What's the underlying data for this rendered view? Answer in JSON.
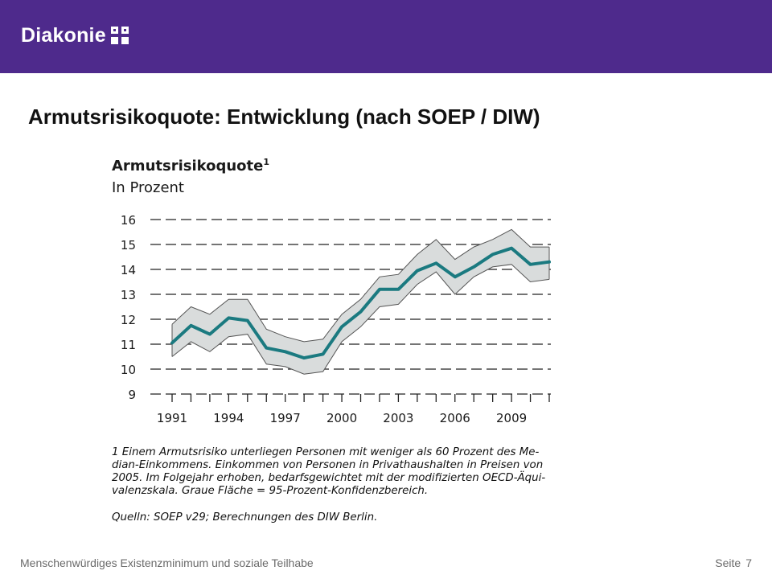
{
  "header": {
    "logo_text": "Diakonie",
    "logo_icon": "diakonie-cross-icon",
    "background_color": "#4e2a8c"
  },
  "slide": {
    "title": "Armutsrisikoquote: Entwicklung (nach SOEP / DIW)"
  },
  "chart_data": {
    "type": "line",
    "title": "Armutsrisikoquote",
    "title_footnote_marker": "1",
    "subtitle": "In Prozent",
    "xlabel": "",
    "ylabel": "",
    "ylim": [
      9,
      16
    ],
    "yticks": [
      9,
      10,
      11,
      12,
      13,
      14,
      15,
      16
    ],
    "xlim": [
      1991,
      2011
    ],
    "xticks": [
      1991,
      1994,
      1997,
      2000,
      2003,
      2006,
      2009
    ],
    "grid": "dashed-horizontal",
    "line_color": "#1b7a80",
    "band_color": "#d9dcdc",
    "band_edge_color": "#555555",
    "x": [
      1991,
      1992,
      1993,
      1994,
      1995,
      1996,
      1997,
      1998,
      1999,
      2000,
      2001,
      2002,
      2003,
      2004,
      2005,
      2006,
      2007,
      2008,
      2009,
      2010,
      2011
    ],
    "series": [
      {
        "values": [
          11.05,
          11.75,
          11.4,
          12.05,
          11.95,
          10.85,
          10.7,
          10.45,
          10.6,
          11.7,
          12.3,
          13.2,
          13.2,
          13.95,
          14.25,
          13.7,
          14.1,
          14.6,
          14.85,
          14.2,
          14.3
        ]
      }
    ],
    "confidence_band": {
      "lower": [
        10.5,
        11.1,
        10.7,
        11.3,
        11.4,
        10.2,
        10.1,
        9.8,
        9.9,
        11.1,
        11.7,
        12.5,
        12.6,
        13.4,
        13.9,
        13.0,
        13.7,
        14.1,
        14.2,
        13.5,
        13.6
      ],
      "upper": [
        11.8,
        12.5,
        12.2,
        12.8,
        12.8,
        11.6,
        11.3,
        11.1,
        11.2,
        12.2,
        12.8,
        13.7,
        13.8,
        14.6,
        15.2,
        14.4,
        14.9,
        15.2,
        15.6,
        14.9,
        14.9
      ]
    }
  },
  "footnote": "1  Einem Armutsrisiko unterliegen Personen mit weniger als 60 Prozent des Me-\ndian-Einkommens. Einkommen von Personen in Privathaushalten in Preisen von\n2005. Im Folgejahr erhoben, bedarfsgewichtet mit der modifizierten OECD-Äqui-\nvalenzskala. Graue Fläche = 95-Prozent-Konfidenzbereich.",
  "source": "Quelln: SOEP v29; Berechnungen des DIW Berlin.",
  "footer": {
    "left_text": "Menschenwürdiges Existenzminimum und soziale Teilhabe",
    "page_label": "Seite",
    "page_number": "7"
  }
}
